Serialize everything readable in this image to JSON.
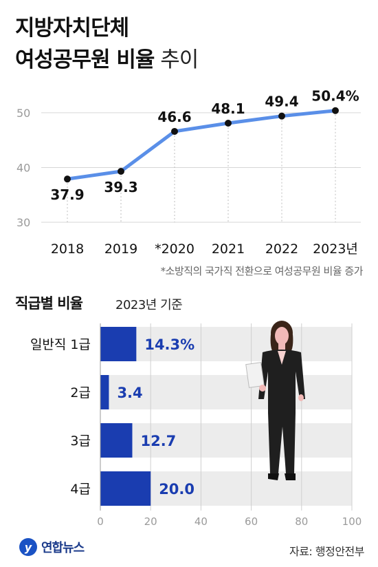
{
  "title": {
    "line1": "지방자치단체",
    "line2_bold": "여성공무원 비율",
    "line2_light": " 추이"
  },
  "footnote": "*소방직의 국가직 전환으로 여성공무원 비율 증가",
  "section": {
    "title": "직급별 비율",
    "basis": "2023년 기준"
  },
  "logo": {
    "mark": "y",
    "name": "연합뉴스"
  },
  "source": "자료: 행정안전부",
  "colors": {
    "line": "#5a8fe8",
    "point": "#111111",
    "bar": "#1a3db0",
    "bar_track": "#ececec",
    "value_blue": "#1a3db0"
  },
  "chart_data": [
    {
      "type": "line",
      "title": "지방자치단체 여성공무원 비율 추이",
      "categories": [
        "2018",
        "2019",
        "*2020",
        "2021",
        "2022",
        "2023년"
      ],
      "values": [
        37.9,
        39.3,
        46.6,
        48.1,
        49.4,
        50.4
      ],
      "value_labels": [
        "37.9",
        "39.3",
        "46.6",
        "48.1",
        "49.4",
        "50.4%"
      ],
      "y_ticks": [
        30,
        40,
        50
      ],
      "ylim": [
        30,
        52
      ],
      "grid": true
    },
    {
      "type": "bar",
      "orientation": "horizontal",
      "title": "직급별 비율",
      "categories": [
        "일반직 1급",
        "2급",
        "3급",
        "4급"
      ],
      "values": [
        14.3,
        3.4,
        12.7,
        20.0
      ],
      "value_labels": [
        "14.3%",
        "3.4",
        "12.7",
        "20.0"
      ],
      "x_ticks": [
        0,
        20,
        40,
        60,
        80,
        100
      ],
      "xlim": [
        0,
        100
      ]
    }
  ]
}
